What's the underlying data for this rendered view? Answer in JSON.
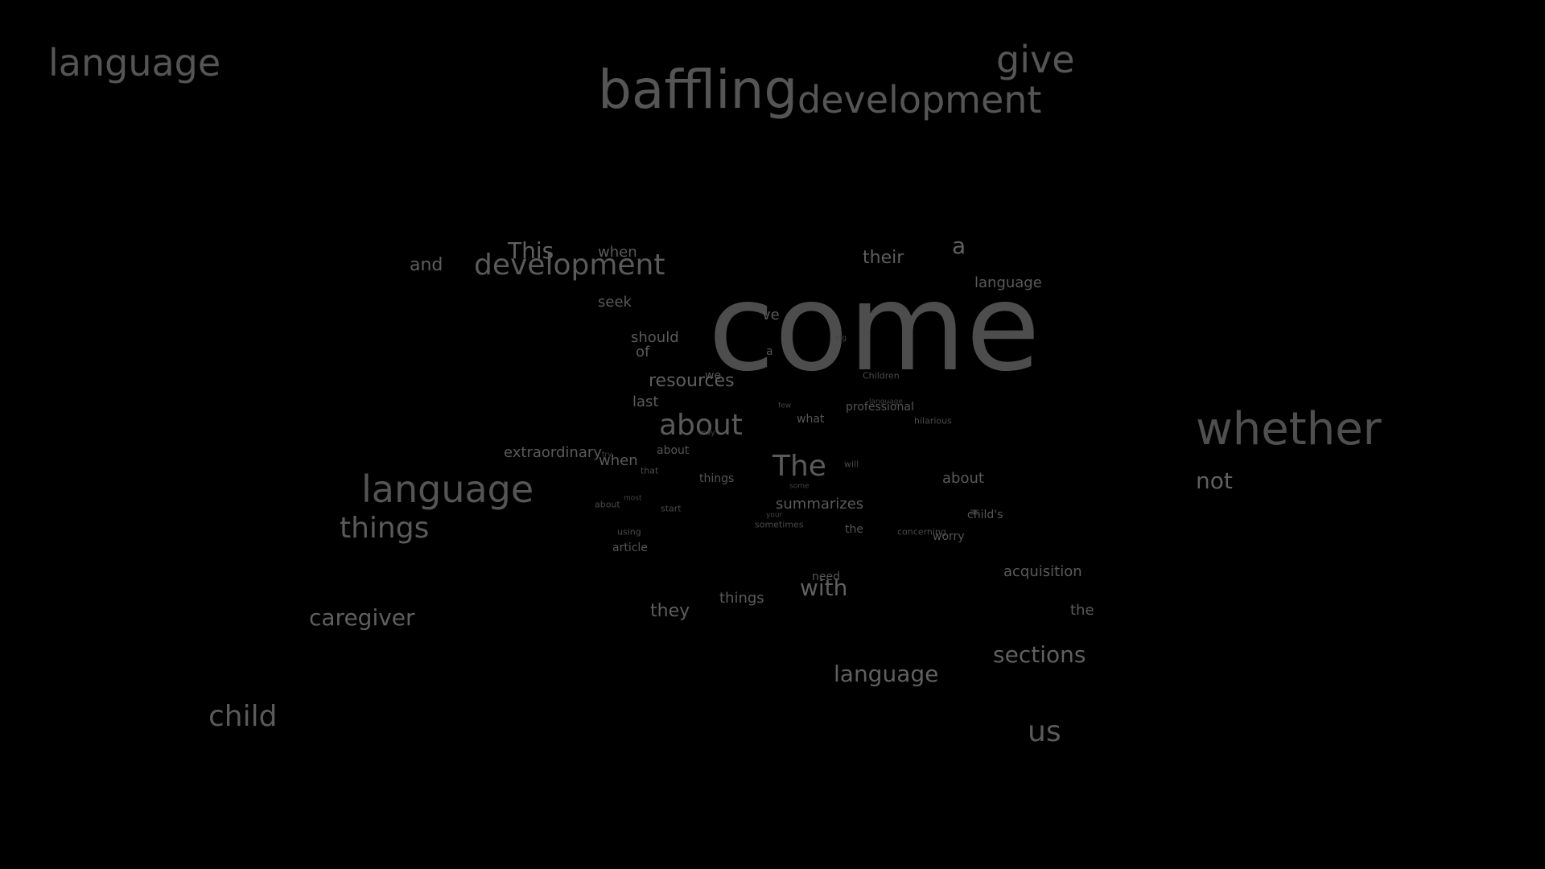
{
  "words": [
    {
      "text": "come"
    },
    {
      "text": "baffling"
    },
    {
      "text": "development"
    },
    {
      "text": "give"
    },
    {
      "text": "language"
    },
    {
      "text": "whether"
    },
    {
      "text": "language"
    },
    {
      "text": "development"
    },
    {
      "text": "things"
    },
    {
      "text": "child"
    },
    {
      "text": "caregiver"
    },
    {
      "text": "about"
    },
    {
      "text": "The"
    },
    {
      "text": "This"
    },
    {
      "text": "a"
    },
    {
      "text": "sections"
    },
    {
      "text": "us"
    },
    {
      "text": "language"
    },
    {
      "text": "with"
    },
    {
      "text": "they"
    },
    {
      "text": "not"
    },
    {
      "text": "and"
    },
    {
      "text": "their"
    },
    {
      "text": "resources"
    },
    {
      "text": "extraordinary"
    },
    {
      "text": "summarizes"
    },
    {
      "text": "things"
    },
    {
      "text": "when"
    },
    {
      "text": "when"
    },
    {
      "text": "about"
    },
    {
      "text": "seek"
    },
    {
      "text": "should"
    },
    {
      "text": "of"
    },
    {
      "text": "last"
    },
    {
      "text": "language"
    },
    {
      "text": "acquisition"
    },
    {
      "text": "the"
    },
    {
      "text": "professional"
    },
    {
      "text": "what"
    },
    {
      "text": "worry"
    },
    {
      "text": "ve"
    },
    {
      "text": "we"
    },
    {
      "text": "about"
    },
    {
      "text": "things"
    },
    {
      "text": "article"
    },
    {
      "text": "the"
    },
    {
      "text": "child's"
    },
    {
      "text": "need"
    },
    {
      "text": "sometimes"
    },
    {
      "text": "concerning"
    },
    {
      "text": "hilarious"
    },
    {
      "text": "Children"
    },
    {
      "text": "will"
    },
    {
      "text": "using"
    },
    {
      "text": "about"
    },
    {
      "text": "start"
    },
    {
      "text": "that"
    },
    {
      "text": "a"
    },
    {
      "text": "few"
    },
    {
      "text": "your"
    },
    {
      "text": "some"
    },
    {
      "text": "most"
    },
    {
      "text": "may"
    },
    {
      "text": "language"
    },
    {
      "text": "ing"
    },
    {
      "text": "as"
    },
    {
      "text": "try"
    }
  ]
}
